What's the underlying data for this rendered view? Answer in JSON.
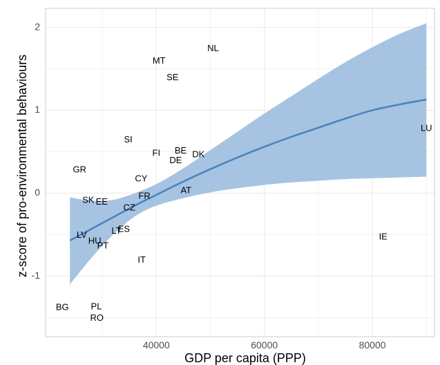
{
  "chart_data": {
    "type": "scatter",
    "xlabel": "GDP per capita (PPP)",
    "ylabel": "z-score of pro-environmental behaviours",
    "xlim": [
      19500,
      91500
    ],
    "ylim": [
      -1.73,
      2.23
    ],
    "x_ticks": [
      40000,
      60000,
      80000
    ],
    "y_ticks": [
      -1,
      0,
      1,
      2
    ],
    "x_tick_labels": [
      "40000",
      "60000",
      "80000"
    ],
    "y_tick_labels": [
      "-1",
      "0",
      "1",
      "2"
    ],
    "grid": true,
    "points": [
      {
        "label": "NL",
        "x": 50500,
        "y": 1.74
      },
      {
        "label": "MT",
        "x": 40500,
        "y": 1.59
      },
      {
        "label": "SE",
        "x": 43000,
        "y": 1.39
      },
      {
        "label": "LU",
        "x": 90000,
        "y": 0.78
      },
      {
        "label": "SI",
        "x": 34800,
        "y": 0.64
      },
      {
        "label": "FI",
        "x": 40000,
        "y": 0.48
      },
      {
        "label": "BE",
        "x": 44500,
        "y": 0.51
      },
      {
        "label": "DK",
        "x": 47800,
        "y": 0.46
      },
      {
        "label": "DE",
        "x": 43600,
        "y": 0.39
      },
      {
        "label": "GR",
        "x": 25800,
        "y": 0.28
      },
      {
        "label": "CY",
        "x": 37200,
        "y": 0.17
      },
      {
        "label": "AT",
        "x": 45500,
        "y": 0.03
      },
      {
        "label": "FR",
        "x": 37800,
        "y": -0.04
      },
      {
        "label": "SK",
        "x": 27400,
        "y": -0.09
      },
      {
        "label": "EE",
        "x": 29900,
        "y": -0.11
      },
      {
        "label": "CZ",
        "x": 35000,
        "y": -0.18
      },
      {
        "label": "IE",
        "x": 82000,
        "y": -0.53
      },
      {
        "label": "LT",
        "x": 32600,
        "y": -0.46
      },
      {
        "label": "ES",
        "x": 34000,
        "y": -0.44
      },
      {
        "label": "LV",
        "x": 26200,
        "y": -0.51
      },
      {
        "label": "HU",
        "x": 28600,
        "y": -0.58
      },
      {
        "label": "PT",
        "x": 30100,
        "y": -0.64
      },
      {
        "label": "IT",
        "x": 37300,
        "y": -0.81
      },
      {
        "label": "BG",
        "x": 22600,
        "y": -1.38
      },
      {
        "label": "PL",
        "x": 28900,
        "y": -1.37
      },
      {
        "label": "RO",
        "x": 29000,
        "y": -1.51
      }
    ],
    "fit": {
      "x": [
        24000,
        28000,
        32000,
        36000,
        40000,
        45000,
        50000,
        55000,
        60000,
        65000,
        70000,
        75000,
        80000,
        85000,
        90000
      ],
      "y": [
        -0.57,
        -0.43,
        -0.29,
        -0.15,
        -0.02,
        0.14,
        0.29,
        0.43,
        0.56,
        0.68,
        0.79,
        0.9,
        1.0,
        1.07,
        1.13
      ],
      "lower": [
        -1.1,
        -0.78,
        -0.5,
        -0.28,
        -0.15,
        -0.06,
        0.01,
        0.06,
        0.1,
        0.13,
        0.15,
        0.17,
        0.18,
        0.19,
        0.2
      ],
      "upper": [
        -0.05,
        -0.09,
        -0.08,
        0.0,
        0.11,
        0.3,
        0.52,
        0.74,
        0.96,
        1.17,
        1.38,
        1.58,
        1.76,
        1.92,
        2.05
      ]
    },
    "colors": {
      "band": "#a6c4e2",
      "line": "#4a84bd",
      "grid": "#ebebeb",
      "panel_border": "#cccccc",
      "text": "#000000"
    }
  }
}
